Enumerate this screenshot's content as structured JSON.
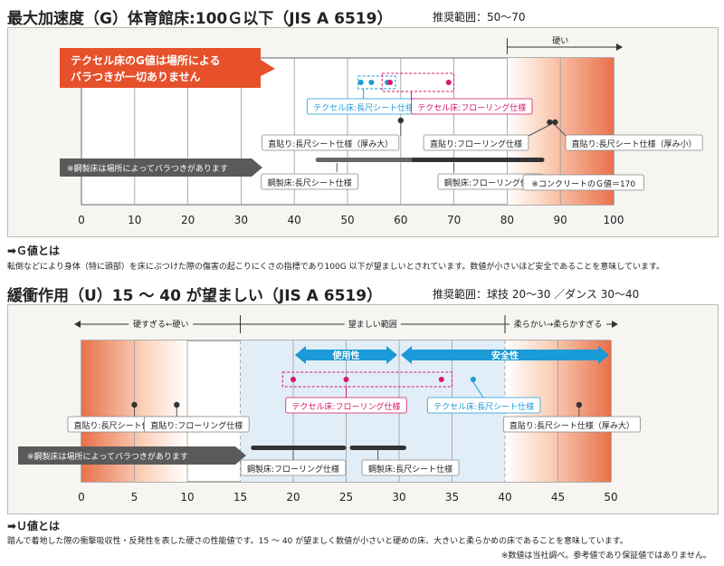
{
  "section_g": {
    "title": "最大加速度（G）体育館床:100Ｇ以下（JIS A 6519）",
    "recommended": "推奨範囲：50～70",
    "callout": [
      "テクセル床のG値は場所による",
      "バラつきが一切ありません"
    ],
    "info_heading": "➡Ｇ値とは",
    "info_text": "転倒などにより身体（特に頭部）を床にぶつけた際の傷害の起こりにくさの指標であり100G 以下が望ましいとされています。数値が小さいほど安全であることを意味しています。"
  },
  "section_u": {
    "title": "緩衝作用（U）15 ～ 40 が望ましい（JIS A 6519）",
    "recommended": "推奨範囲：球技 20～30 ／ダンス 30～40",
    "info_heading": "➡Ｕ値とは",
    "info_text": "踏んで着地した際の衝撃吸収性・反発性を表した硬さの性能値です。15 ～ 40 が望ましく数値が小さいと硬めの床、大きいと柔らかめの床であることを意味しています。",
    "footnote": "※数値は当社調べ。参考値であり保証値ではありません。"
  },
  "chart_data": [
    {
      "type": "scatter",
      "title": "最大加速度（G）体育館床:100Ｇ以下（JIS A 6519）",
      "xlim": [
        0,
        100
      ],
      "xticks": [
        0,
        10,
        20,
        30,
        40,
        50,
        60,
        70,
        80,
        90,
        100
      ],
      "recommended_range": [
        50,
        70
      ],
      "colors": {
        "hard": "#e8714a",
        "teksel_long": "#1a9ad6",
        "teksel_flooring": "#d7176b",
        "direct": "#333333",
        "steel": "#444444"
      },
      "zones": [
        {
          "label": "硬い",
          "from": 80,
          "to": 100,
          "color": "#e8714a"
        }
      ],
      "series": [
        {
          "name": "テクセル床:長尺シート仕様",
          "kind": "teksel_long",
          "values": [
            53,
            55,
            58
          ],
          "box": [
            52,
            59
          ]
        },
        {
          "name": "テクセル床:フローリング仕様",
          "kind": "teksel_flooring",
          "values": [
            58,
            69
          ],
          "box": [
            56.5,
            70
          ]
        },
        {
          "name": "直貼り:長尺シート仕様（厚み大）",
          "kind": "direct",
          "values": [
            60
          ]
        },
        {
          "name": "直貼り:フローリング仕様",
          "kind": "direct",
          "values": [
            88
          ]
        },
        {
          "name": "直貼り:長尺シート仕様（厚み小）",
          "kind": "direct",
          "values": [
            89
          ]
        },
        {
          "name": "鋼製床:長尺シート仕様",
          "kind": "steel",
          "range": [
            44,
            70
          ]
        },
        {
          "name": "鋼製床:フローリング仕様",
          "kind": "steel",
          "range": [
            62,
            87
          ]
        }
      ],
      "annotations": [
        "※鋼製床は場所によってバラつきがあります",
        "※コンクリートのＧ値＝170"
      ]
    },
    {
      "type": "scatter",
      "title": "緩衝作用（U）15 ～ 40 が望ましい（JIS A 6519）",
      "xlim": [
        0,
        50
      ],
      "xticks": [
        0,
        5,
        10,
        15,
        20,
        25,
        30,
        35,
        40,
        45,
        50
      ],
      "recommended_range": [
        15,
        40
      ],
      "colors": {
        "zone": "#e8714a",
        "preferred_fill": "#e2eef7",
        "arrow": "#1a9ad6",
        "teksel_long": "#1a9ad6",
        "teksel_flooring": "#d7176b",
        "direct": "#333333",
        "steel": "#444444"
      },
      "zones": [
        {
          "label": "硬すぎる←硬い",
          "from": 0,
          "to": 15
        },
        {
          "label": "望ましい範囲",
          "from": 15,
          "to": 40
        },
        {
          "label": "柔らかい→柔らかすぎる",
          "from": 40,
          "to": 50
        }
      ],
      "bands": [
        {
          "label": "使用性",
          "from": 20,
          "to": 30
        },
        {
          "label": "安全性",
          "from": 30,
          "to": 50
        }
      ],
      "series": [
        {
          "name": "テクセル床:フローリング仕様",
          "kind": "teksel_flooring",
          "values": [
            20,
            25,
            34
          ],
          "box": [
            19,
            35
          ]
        },
        {
          "name": "テクセル床:長尺シート仕様",
          "kind": "teksel_long",
          "values": [
            37
          ]
        },
        {
          "name": "直貼り:長尺シート仕様（厚み小）",
          "kind": "direct",
          "values": [
            5
          ]
        },
        {
          "name": "直貼り:フローリング仕様",
          "kind": "direct",
          "values": [
            9
          ]
        },
        {
          "name": "直貼り:長尺シート仕様（厚み大）",
          "kind": "direct",
          "values": [
            47
          ]
        },
        {
          "name": "鋼製床:フローリング仕様",
          "kind": "steel",
          "range": [
            16,
            25
          ]
        },
        {
          "name": "鋼製床:長尺シート仕様",
          "kind": "steel",
          "range": [
            25,
            30
          ]
        }
      ],
      "annotations": [
        "※鋼製床は場所によってバラつきがあります"
      ]
    }
  ]
}
